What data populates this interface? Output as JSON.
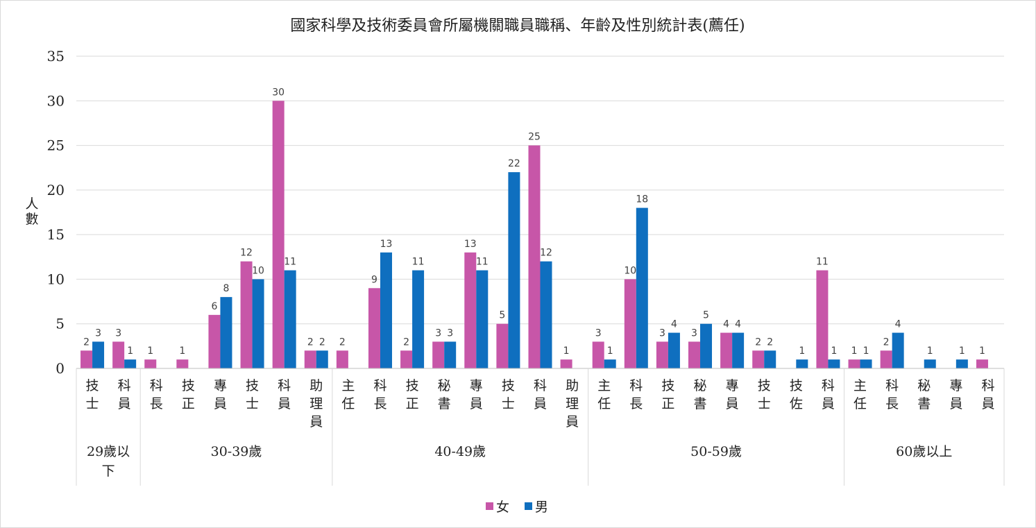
{
  "chart_data": {
    "type": "bar",
    "title": "國家科學及技術委員會所屬機關職員職稱、年齡及性別統計表(薦任)",
    "ylabel": "人數",
    "ylim": [
      0,
      35
    ],
    "yticks": [
      0,
      5,
      10,
      15,
      20,
      25,
      30,
      35
    ],
    "grid": true,
    "legend_position": "bottom",
    "groups": [
      {
        "label": "29歲以下",
        "categories": [
          "技士",
          "科員"
        ]
      },
      {
        "label": "30-39歲",
        "categories": [
          "科長",
          "技正",
          "專員",
          "技士",
          "科員",
          "助理員"
        ]
      },
      {
        "label": "40-49歲",
        "categories": [
          "主任",
          "科長",
          "技正",
          "秘書",
          "專員",
          "技士",
          "科員",
          "助理員"
        ]
      },
      {
        "label": "50-59歲",
        "categories": [
          "主任",
          "科長",
          "技正",
          "秘書",
          "專員",
          "技士",
          "技佐",
          "科員"
        ]
      },
      {
        "label": "60歲以上",
        "categories": [
          "主任",
          "科長",
          "秘書",
          "專員",
          "科員"
        ]
      }
    ],
    "series": [
      {
        "name": "女",
        "color": "#c756a8",
        "values": [
          2,
          3,
          1,
          1,
          6,
          12,
          30,
          2,
          2,
          9,
          2,
          3,
          13,
          5,
          25,
          1,
          3,
          10,
          3,
          3,
          4,
          2,
          null,
          11,
          1,
          2,
          null,
          null,
          1
        ]
      },
      {
        "name": "男",
        "color": "#0f6fbf",
        "values": [
          3,
          1,
          null,
          null,
          8,
          10,
          11,
          2,
          null,
          13,
          11,
          3,
          11,
          22,
          12,
          null,
          1,
          18,
          4,
          5,
          4,
          2,
          1,
          1,
          1,
          4,
          1,
          1,
          null
        ]
      }
    ]
  }
}
